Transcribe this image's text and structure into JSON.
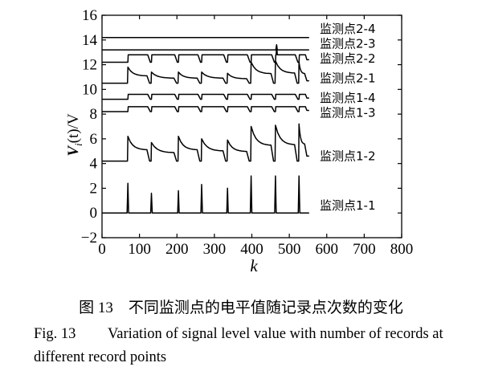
{
  "chart_data": {
    "type": "line",
    "xlabel": "k",
    "ylabel_main": "V",
    "ylabel_sub": "i",
    "ylabel_rest": "(t)/V",
    "xlim": [
      0,
      800
    ],
    "ylim": [
      -2,
      16
    ],
    "xticks": [
      0,
      100,
      200,
      300,
      400,
      500,
      600,
      700,
      800
    ],
    "yticks": [
      -2,
      0,
      2,
      4,
      6,
      8,
      10,
      12,
      14,
      16
    ],
    "x_range": [
      0,
      553
    ],
    "event_k": [
      69,
      132,
      204,
      266,
      335,
      398,
      463,
      526
    ],
    "series": [
      {
        "name": "监测点2-4",
        "kind": "flat",
        "baseline": 14.2,
        "label_y": 14.9
      },
      {
        "name": "监测点2-3",
        "kind": "flat",
        "baseline": 13.2,
        "label_y": 13.7,
        "spike_k": 466,
        "spike_peak": 13.6
      },
      {
        "name": "监测点2-2",
        "kind": "step",
        "baseline": 12.2,
        "plateau": 12.8,
        "end_drop": 12.4,
        "spike_k": 466,
        "spike_peak": 13.6,
        "label_y": 12.5
      },
      {
        "name": "监测点2-1",
        "kind": "decay",
        "baseline": 10.5,
        "peaks": [
          11.8,
          11.4,
          11.4,
          11.4,
          11.3,
          12.2,
          12.3,
          12.2
        ],
        "tail": 10.7,
        "label_y": 10.9
      },
      {
        "name": "监测点1-4",
        "kind": "step",
        "baseline": 9.2,
        "plateau": 9.6,
        "end_drop": 9.3,
        "label_y": 9.3
      },
      {
        "name": "监测点1-3",
        "kind": "step",
        "baseline": 8.2,
        "plateau": 8.6,
        "end_drop": 8.3,
        "label_y": 8.1
      },
      {
        "name": "监测点1-2",
        "kind": "decay",
        "baseline": 4.2,
        "peaks": [
          6.2,
          5.7,
          6.2,
          6.0,
          5.9,
          7.0,
          7.1,
          7.2
        ],
        "tail": 4.6,
        "label_y": 4.6
      },
      {
        "name": "监测点1-1",
        "kind": "spike",
        "baseline": 0,
        "peaks": [
          2.4,
          1.6,
          1.8,
          2.3,
          2.0,
          3.0,
          3.0,
          3.0
        ],
        "label_y": 0.6
      }
    ]
  },
  "caption_cn": "图 13　不同监测点的电平值随记录点次数的变化",
  "caption_en_fig": "Fig. 13",
  "caption_en_text": "Variation of signal level value with number of records at different record points"
}
